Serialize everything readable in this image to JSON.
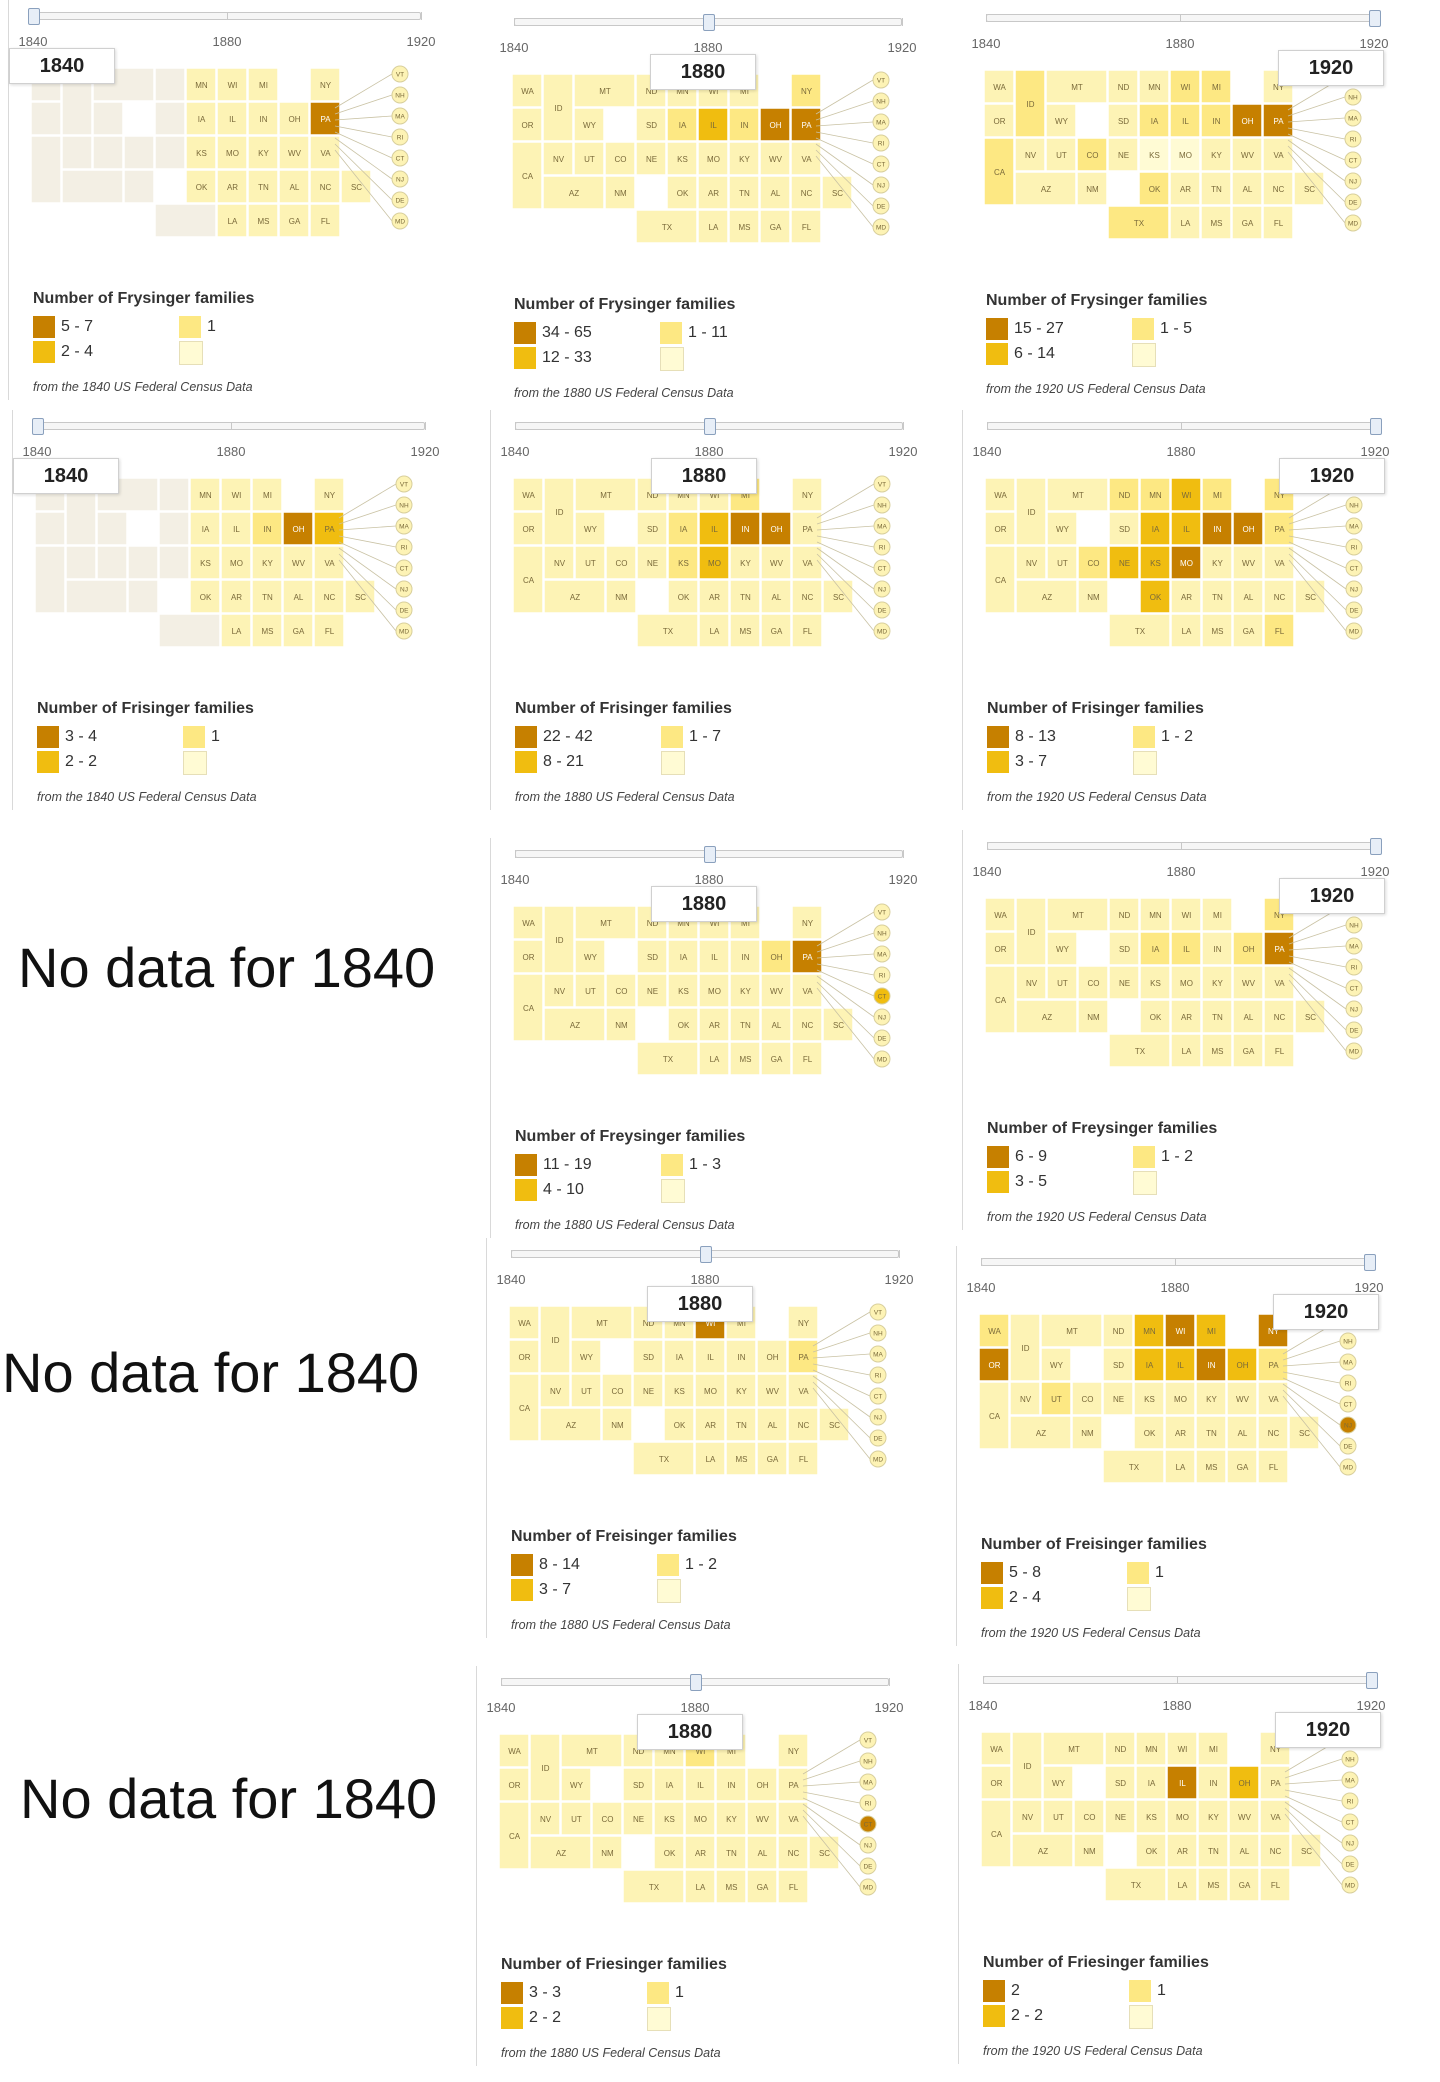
{
  "colors": {
    "level_4": "#c68000",
    "level_3": "#f0bd10",
    "level_2": "#fde883",
    "level_1": "#fffbd4",
    "map_base": "#fdf3b5",
    "no_data_region": "#f3efe4",
    "state_border": "#ffffff"
  },
  "slider": {
    "ticks": [
      "1840",
      "1880",
      "1920"
    ]
  },
  "source_template": "from the {year} US Federal Census Data",
  "no_data_text": "No data for 1840",
  "panels": [
    {
      "id": "frysinger-1840",
      "year": "1840",
      "thumb": 0.0,
      "legend_title": "Number of Frysinger families",
      "ranges": [
        "5 - 7",
        "2 - 4",
        "1",
        ""
      ],
      "source": "from the 1840 US Federal Census Data",
      "highlight": [
        {
          "abbr": "PA",
          "level": 4
        }
      ],
      "unsettled_west": true
    },
    {
      "id": "frysinger-1880",
      "year": "1880",
      "thumb": 0.5,
      "legend_title": "Number of Frysinger families",
      "ranges": [
        "34 - 65",
        "12 - 33",
        "1 - 11",
        ""
      ],
      "source": "from the 1880 US Federal Census Data",
      "highlight": [
        {
          "abbr": "PA",
          "level": 4
        },
        {
          "abbr": "OH",
          "level": 4
        },
        {
          "abbr": "IL",
          "level": 3
        },
        {
          "abbr": "IN",
          "level": 2
        },
        {
          "abbr": "NY",
          "level": 2
        },
        {
          "abbr": "IA",
          "level": 2
        }
      ]
    },
    {
      "id": "frysinger-1920",
      "year": "1920",
      "thumb": 1.0,
      "legend_title": "Number of Frysinger families",
      "ranges": [
        "15 - 27",
        "6 - 14",
        "1 - 5",
        ""
      ],
      "source": "from the 1920 US Federal Census Data",
      "highlight": [
        {
          "abbr": "PA",
          "level": 4
        },
        {
          "abbr": "OH",
          "level": 4
        },
        {
          "abbr": "CA",
          "level": 2
        },
        {
          "abbr": "ID",
          "level": 2
        },
        {
          "abbr": "CO",
          "level": 2
        },
        {
          "abbr": "TX",
          "level": 2
        },
        {
          "abbr": "OK",
          "level": 2
        },
        {
          "abbr": "IL",
          "level": 2
        },
        {
          "abbr": "IA",
          "level": 2
        },
        {
          "abbr": "MI",
          "level": 2
        },
        {
          "abbr": "WI",
          "level": 2
        },
        {
          "abbr": "IN",
          "level": 2
        },
        {
          "abbr": "KS",
          "level": 1
        },
        {
          "abbr": "MO",
          "level": 1
        }
      ]
    },
    {
      "id": "frisinger-1840",
      "year": "1840",
      "thumb": 0.0,
      "legend_title": "Number of Frisinger families",
      "ranges": [
        "3 - 4",
        "2 - 2",
        "1",
        ""
      ],
      "source": "from the 1840 US Federal Census Data",
      "highlight": [
        {
          "abbr": "OH",
          "level": 4
        },
        {
          "abbr": "PA",
          "level": 3
        },
        {
          "abbr": "IN",
          "level": 2
        }
      ],
      "unsettled_west": true
    },
    {
      "id": "frisinger-1880",
      "year": "1880",
      "thumb": 0.5,
      "legend_title": "Number of Frisinger families",
      "ranges": [
        "22 - 42",
        "8 - 21",
        "1 - 7",
        ""
      ],
      "source": "from the 1880 US Federal Census Data",
      "highlight": [
        {
          "abbr": "OH",
          "level": 4
        },
        {
          "abbr": "IN",
          "level": 4
        },
        {
          "abbr": "IL",
          "level": 3
        },
        {
          "abbr": "MO",
          "level": 3
        },
        {
          "abbr": "IA",
          "level": 2
        },
        {
          "abbr": "KS",
          "level": 2
        },
        {
          "abbr": "MI",
          "level": 2
        }
      ]
    },
    {
      "id": "frisinger-1920",
      "year": "1920",
      "thumb": 1.0,
      "legend_title": "Number of Frisinger families",
      "ranges": [
        "8 - 13",
        "3 - 7",
        "1 - 2",
        ""
      ],
      "source": "from the 1920 US Federal Census Data",
      "highlight": [
        {
          "abbr": "IN",
          "level": 4
        },
        {
          "abbr": "OH",
          "level": 4
        },
        {
          "abbr": "MO",
          "level": 4
        },
        {
          "abbr": "OK",
          "level": 3
        },
        {
          "abbr": "IL",
          "level": 3
        },
        {
          "abbr": "IA",
          "level": 3
        },
        {
          "abbr": "KS",
          "level": 3
        },
        {
          "abbr": "NE",
          "level": 3
        },
        {
          "abbr": "WI",
          "level": 3
        },
        {
          "abbr": "CO",
          "level": 2
        },
        {
          "abbr": "ND",
          "level": 2
        },
        {
          "abbr": "MI",
          "level": 2
        },
        {
          "abbr": "PA",
          "level": 2
        },
        {
          "abbr": "FL",
          "level": 2
        },
        {
          "abbr": "MN",
          "level": 2
        },
        {
          "abbr": "NY",
          "level": 2
        }
      ]
    },
    {
      "id": "freysinger-1880",
      "year": "1880",
      "thumb": 0.5,
      "legend_title": "Number of Freysinger families",
      "ranges": [
        "11 - 19",
        "4 - 10",
        "1 - 3",
        ""
      ],
      "source": "from the 1880 US Federal Census Data",
      "highlight": [
        {
          "abbr": "PA",
          "level": 4
        },
        {
          "abbr": "OH",
          "level": 2
        },
        {
          "abbr": "CT",
          "level": 3
        }
      ]
    },
    {
      "id": "freysinger-1920",
      "year": "1920",
      "thumb": 1.0,
      "legend_title": "Number of Freysinger families",
      "ranges": [
        "6 - 9",
        "3 - 5",
        "1 - 2",
        ""
      ],
      "source": "from the 1920 US Federal Census Data",
      "highlight": [
        {
          "abbr": "PA",
          "level": 4
        },
        {
          "abbr": "IL",
          "level": 2
        },
        {
          "abbr": "IA",
          "level": 2
        },
        {
          "abbr": "OH",
          "level": 2
        },
        {
          "abbr": "NY",
          "level": 2
        }
      ]
    },
    {
      "id": "freisinger-1880",
      "year": "1880",
      "thumb": 0.5,
      "legend_title": "Number of Freisinger families",
      "ranges": [
        "8 - 14",
        "3 - 7",
        "1 - 2",
        ""
      ],
      "source": "from the 1880 US Federal Census Data",
      "highlight": [
        {
          "abbr": "WI",
          "level": 4
        },
        {
          "abbr": "PA",
          "level": 2
        }
      ]
    },
    {
      "id": "freisinger-1920",
      "year": "1920",
      "thumb": 1.0,
      "legend_title": "Number of Freisinger families",
      "ranges": [
        "5 - 8",
        "2 - 4",
        "1",
        ""
      ],
      "source": "from the 1920 US Federal Census Data",
      "highlight": [
        {
          "abbr": "OR",
          "level": 4
        },
        {
          "abbr": "WI",
          "level": 4
        },
        {
          "abbr": "IN",
          "level": 4
        },
        {
          "abbr": "NY",
          "level": 4
        },
        {
          "abbr": "NJ",
          "level": 4
        },
        {
          "abbr": "MN",
          "level": 3
        },
        {
          "abbr": "MI",
          "level": 3
        },
        {
          "abbr": "IL",
          "level": 3
        },
        {
          "abbr": "IA",
          "level": 3
        },
        {
          "abbr": "OH",
          "level": 3
        },
        {
          "abbr": "WA",
          "level": 2
        },
        {
          "abbr": "UT",
          "level": 2
        },
        {
          "abbr": "PA",
          "level": 2
        }
      ]
    },
    {
      "id": "friesinger-1880",
      "year": "1880",
      "thumb": 0.5,
      "legend_title": "Number of Friesinger families",
      "ranges": [
        "3 - 3",
        "2 - 2",
        "1",
        ""
      ],
      "source": "from the 1880 US Federal Census Data",
      "highlight": [
        {
          "abbr": "WI",
          "level": 2
        },
        {
          "abbr": "CT",
          "level": 4
        }
      ]
    },
    {
      "id": "friesinger-1920",
      "year": "1920",
      "thumb": 1.0,
      "legend_title": "Number of Friesinger families",
      "ranges": [
        "2",
        "2 - 2",
        "1",
        ""
      ],
      "source": "from the 1920 US Federal Census Data",
      "highlight": [
        {
          "abbr": "IL",
          "level": 4
        },
        {
          "abbr": "OH",
          "level": 3
        }
      ]
    }
  ]
}
